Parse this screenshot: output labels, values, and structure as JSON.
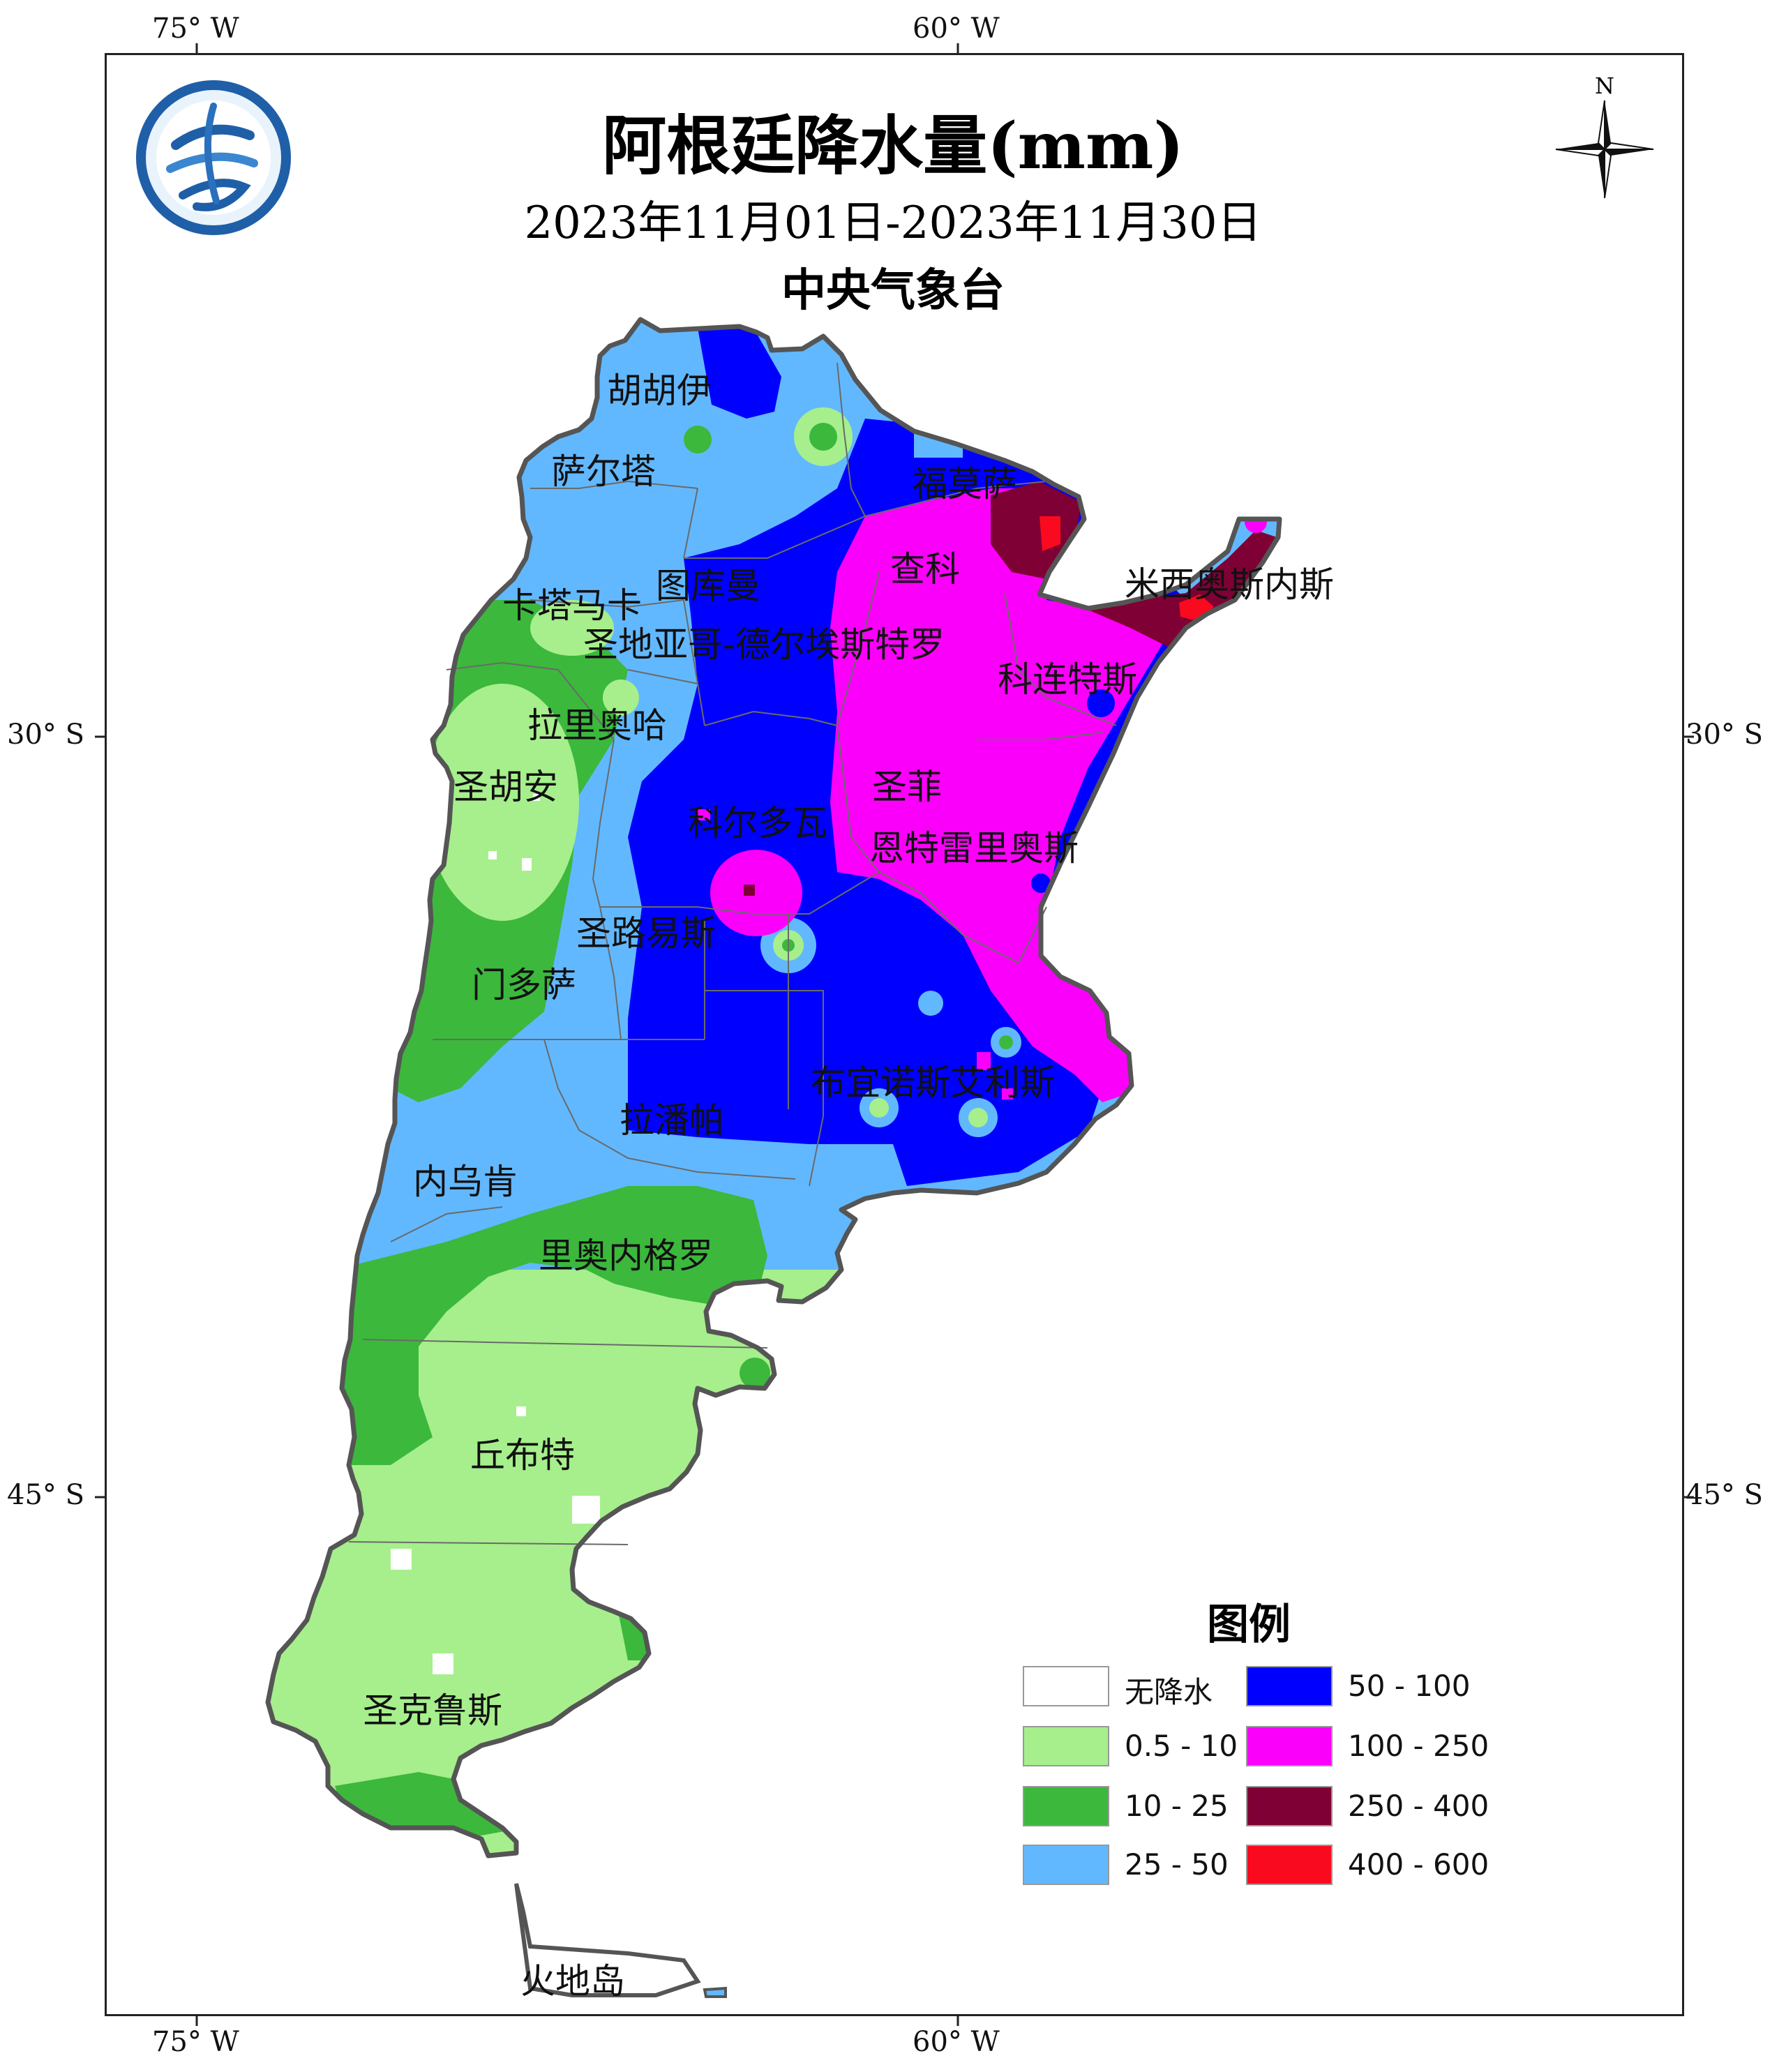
{
  "map": {
    "title": "阿根廷降水量(mm)",
    "date_range": "2023年11月01日-2023年11月30日",
    "agency": "中央气象台",
    "north_label": "N",
    "graticule": {
      "top": [
        "75° W",
        "60° W"
      ],
      "bottom": [
        "75° W",
        "60° W"
      ],
      "left": [
        "30° S",
        "45° S"
      ],
      "right": [
        "30° S",
        "45° S"
      ]
    },
    "provinces": [
      {
        "id": "jujuy",
        "label": "胡胡伊"
      },
      {
        "id": "salta",
        "label": "萨尔塔"
      },
      {
        "id": "formosa",
        "label": "福莫萨"
      },
      {
        "id": "tucuman",
        "label": "图库曼"
      },
      {
        "id": "chaco",
        "label": "查科"
      },
      {
        "id": "catamarca",
        "label": "卡塔马卡"
      },
      {
        "id": "santiago",
        "label": "圣地亚哥-德尔埃斯特罗"
      },
      {
        "id": "misiones",
        "label": "米西奥斯内斯"
      },
      {
        "id": "corrientes",
        "label": "科连特斯"
      },
      {
        "id": "larioja",
        "label": "拉里奥哈"
      },
      {
        "id": "sanjuan",
        "label": "圣胡安"
      },
      {
        "id": "santafe",
        "label": "圣菲"
      },
      {
        "id": "cordoba",
        "label": "科尔多瓦"
      },
      {
        "id": "entrerios",
        "label": "恩特雷里奥斯"
      },
      {
        "id": "sanluis",
        "label": "圣路易斯"
      },
      {
        "id": "mendoza",
        "label": "门多萨"
      },
      {
        "id": "buenosaires",
        "label": "布宜诺斯艾利斯"
      },
      {
        "id": "lapampa",
        "label": "拉潘帕"
      },
      {
        "id": "neuquen",
        "label": "内乌肯"
      },
      {
        "id": "rionegro",
        "label": "里奥内格罗"
      },
      {
        "id": "chubut",
        "label": "丘布特"
      },
      {
        "id": "santacruz",
        "label": "圣克鲁斯"
      },
      {
        "id": "tierradelfuego",
        "label": "火地岛"
      }
    ]
  },
  "legend": {
    "title": "图例",
    "items": [
      {
        "label": "无降水",
        "color": "#ffffff"
      },
      {
        "label": "0.5 - 10",
        "color": "#a6ef8c"
      },
      {
        "label": "10  - 25",
        "color": "#3cb83c"
      },
      {
        "label": "25  - 50",
        "color": "#62b8ff"
      },
      {
        "label": "50  - 100",
        "color": "#0000fe"
      },
      {
        "label": "100 - 250",
        "color": "#fa00fa"
      },
      {
        "label": "250 - 400",
        "color": "#7f0034"
      },
      {
        "label": "400 - 600",
        "color": "#fa0a1e"
      }
    ]
  }
}
